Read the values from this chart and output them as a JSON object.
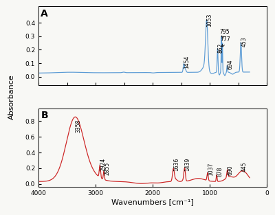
{
  "xlabel": "Wavenumbers [cm⁻¹]",
  "ylabel": "Absorbance",
  "xlim": [
    4000,
    0
  ],
  "background_color": "#f8f8f5",
  "panel_A": {
    "label": "A",
    "color": "#5b9bd5",
    "ylim": [
      -0.06,
      0.52
    ],
    "yticks": [
      0.0,
      0.1,
      0.2,
      0.3,
      0.4
    ]
  },
  "panel_B": {
    "label": "B",
    "color": "#cc2222",
    "ylim": [
      -0.04,
      0.96
    ],
    "yticks": [
      0.0,
      0.2,
      0.4,
      0.6,
      0.8
    ]
  }
}
